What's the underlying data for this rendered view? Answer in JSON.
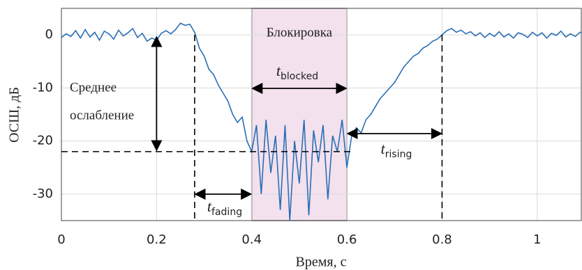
{
  "chart_data": {
    "type": "line",
    "xlabel": "Время, с",
    "ylabel": "ОСШ, дБ",
    "color": "#2a6fb5",
    "xlim": [
      0,
      1.1
    ],
    "ylim": [
      -35,
      5
    ],
    "xticks": [
      0,
      0.2,
      0.4,
      0.6,
      0.8,
      1
    ],
    "yticks": [
      -30,
      -20,
      -10,
      0
    ],
    "grid": true,
    "x": [
      0,
      0.01,
      0.02,
      0.03,
      0.04,
      0.05,
      0.06,
      0.07,
      0.08,
      0.09,
      0.1,
      0.11,
      0.12,
      0.13,
      0.14,
      0.15,
      0.16,
      0.17,
      0.18,
      0.19,
      0.2,
      0.21,
      0.22,
      0.23,
      0.24,
      0.25,
      0.26,
      0.27,
      0.28,
      0.29,
      0.3,
      0.31,
      0.32,
      0.33,
      0.34,
      0.35,
      0.36,
      0.37,
      0.38,
      0.39,
      0.4,
      0.41,
      0.42,
      0.43,
      0.44,
      0.45,
      0.46,
      0.47,
      0.48,
      0.49,
      0.5,
      0.51,
      0.52,
      0.53,
      0.54,
      0.55,
      0.56,
      0.57,
      0.58,
      0.59,
      0.6,
      0.61,
      0.62,
      0.63,
      0.64,
      0.65,
      0.66,
      0.67,
      0.68,
      0.69,
      0.7,
      0.71,
      0.72,
      0.73,
      0.74,
      0.75,
      0.76,
      0.77,
      0.78,
      0.79,
      0.8,
      0.81,
      0.82,
      0.83,
      0.84,
      0.85,
      0.86,
      0.87,
      0.88,
      0.89,
      0.9,
      0.91,
      0.92,
      0.93,
      0.94,
      0.95,
      0.96,
      0.97,
      0.98,
      0.99,
      1,
      1.01,
      1.02,
      1.03,
      1.04,
      1.05,
      1.06,
      1.07,
      1.08,
      1.09,
      1.1
    ],
    "values": [
      -0.5,
      0.2,
      -0.3,
      0.8,
      -0.6,
      1.0,
      -0.4,
      0.5,
      -1.0,
      0.7,
      0.2,
      -0.8,
      0.9,
      -0.2,
      0.4,
      1.2,
      -0.5,
      0.3,
      -1.2,
      -0.6,
      -1.0,
      0.3,
      0.8,
      0.2,
      1.0,
      2.2,
      1.8,
      2.0,
      0.5,
      -2.5,
      -4.0,
      -6.5,
      -7.5,
      -9.5,
      -11.0,
      -12.5,
      -15.0,
      -16.5,
      -15.5,
      -20.0,
      -22.0,
      -17,
      -30,
      -16,
      -26,
      -19,
      -33,
      -17,
      -35,
      -20,
      -28,
      -16,
      -34,
      -18,
      -24,
      -17,
      -31,
      -19,
      -22,
      -16,
      -25,
      -19,
      -17.5,
      -18.5,
      -16,
      -15,
      -13.5,
      -12,
      -11,
      -10,
      -9,
      -7.5,
      -6,
      -5,
      -4,
      -3.5,
      -2.5,
      -2,
      -1.2,
      -0.8,
      0,
      0.8,
      1.2,
      0.5,
      0.9,
      0.2,
      0.6,
      -0.2,
      0.4,
      -0.5,
      0.3,
      -0.3,
      0.6,
      -0.4,
      0.2,
      -0.6,
      0.4,
      0.1,
      -0.5,
      0.5,
      -0.2,
      0.4,
      -0.6,
      0.3,
      -0.1,
      0.7,
      -0.4,
      0.2,
      -0.3,
      0.5,
      0.0
    ],
    "mean_level": -22,
    "events": {
      "fading_start": 0.28,
      "block_start": 0.4,
      "block_end": 0.6,
      "rising_end": 0.8
    },
    "block_label": "Блокировка",
    "mean_label": [
      "Среднее",
      "ослабление"
    ],
    "t_blocked": {
      "main": "t",
      "sub": "blocked"
    },
    "t_fading": {
      "main": "t",
      "sub": "fading"
    },
    "t_rising": {
      "main": "t",
      "sub": "rising"
    }
  }
}
